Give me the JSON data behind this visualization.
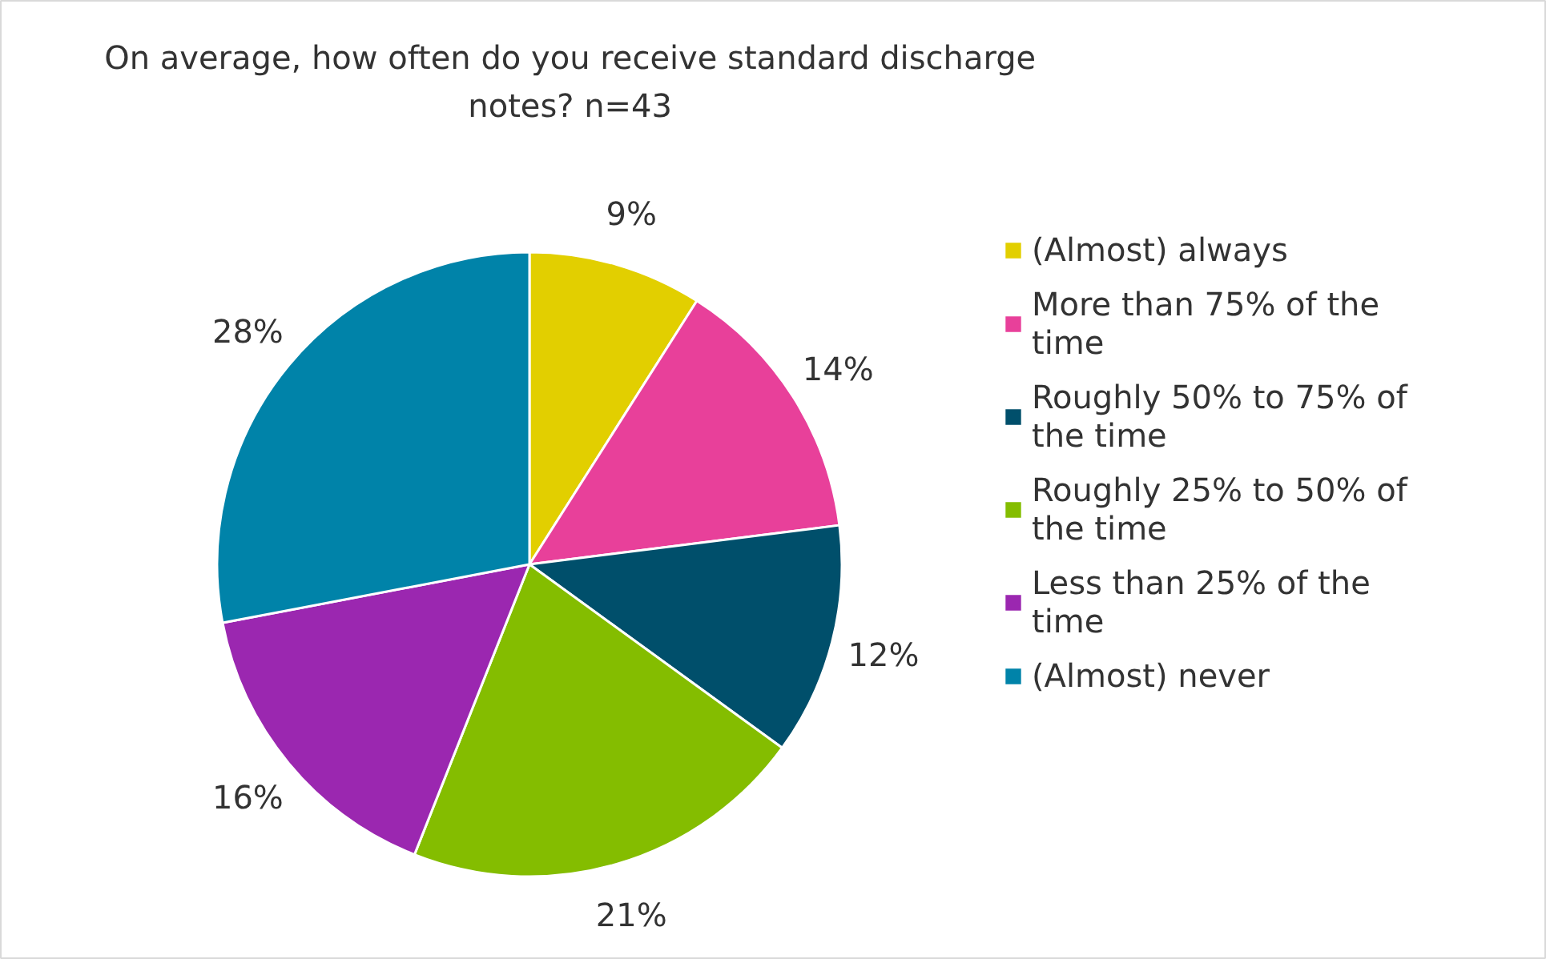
{
  "chart_data": {
    "type": "pie",
    "title": "On average, how often do you receive standard discharge notes? n=43",
    "categories": [
      "(Almost) always",
      "More than 75% of the time",
      "Roughly 50% to 75% of the time",
      "Roughly 25% to 50% of the time",
      "Less than 25% of the time",
      "(Almost) never"
    ],
    "values": [
      9,
      14,
      12,
      21,
      16,
      28
    ],
    "colors": [
      "#e2cf00",
      "#e8409a",
      "#004f6b",
      "#84bd00",
      "#9b27b0",
      "#0083a9"
    ],
    "value_labels": [
      "9%",
      "14%",
      "12%",
      "21%",
      "16%",
      "28%"
    ],
    "legend": "right"
  }
}
